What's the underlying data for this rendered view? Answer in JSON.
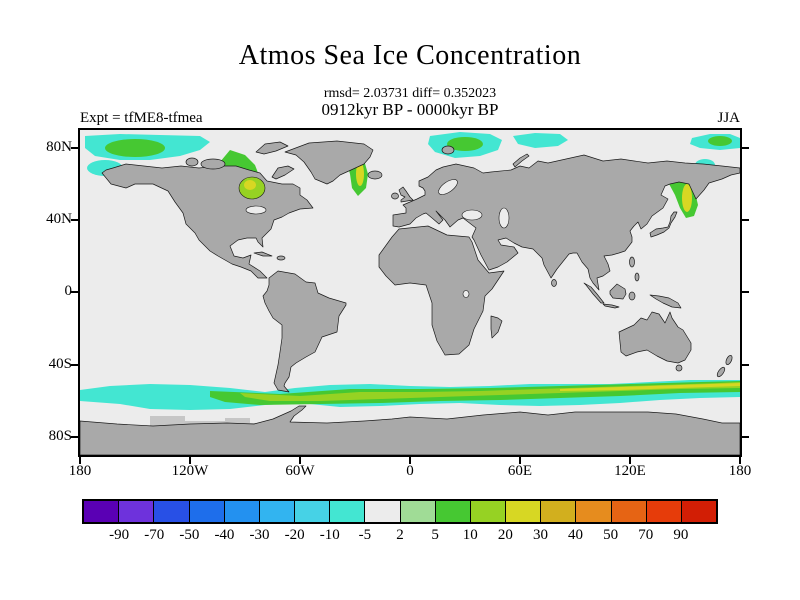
{
  "title": "Atmos Sea Ice Concentration",
  "stats_line": "rmsd= 2.03731 diff= 0.352023",
  "period_line": "0912kyr BP - 0000kyr BP",
  "experiment_label": "Expt = tfME8-tfmea",
  "season_label": "JJA",
  "axes": {
    "lat_ticks": [
      "80N",
      "40N",
      "0",
      "40S",
      "80S"
    ],
    "lon_ticks": [
      "180",
      "120W",
      "60W",
      "0",
      "60E",
      "120E",
      "180"
    ]
  },
  "colorbar": {
    "tick_labels": [
      "-90",
      "-70",
      "-50",
      "-40",
      "-30",
      "-20",
      "-10",
      "-5",
      "2",
      "5",
      "10",
      "20",
      "30",
      "40",
      "50",
      "70",
      "90"
    ],
    "segment_colors": [
      "#5a00b4",
      "#6e32dc",
      "#2850e6",
      "#1e6eeb",
      "#2391f0",
      "#32b4f0",
      "#46d2e6",
      "#43e6d2",
      "#ececec",
      "#a0dc96",
      "#46c832",
      "#96d223",
      "#d7d723",
      "#d2af1e",
      "#e68c1e",
      "#e66414",
      "#e63c0a",
      "#d21e05"
    ]
  },
  "map_colors": {
    "ocean": "#ececec",
    "land": "#a9a9a9",
    "coastline": "#1a1a1a",
    "frame": "#000000",
    "ice_negative_turquoise": "#43e6d2",
    "ice_positive_green": "#46c832",
    "ice_positive_yellow_green": "#96d223",
    "ice_positive_yellow": "#d7d723",
    "gray_patch": "#c6c6c6"
  },
  "chart_data": {
    "type": "heatmap",
    "title": "Atmos Sea Ice Concentration",
    "stats": {
      "rmsd": 2.03731,
      "diff": 0.352023
    },
    "period": "0912kyr BP - 0000kyr BP",
    "experiment": "tfME8-tfmea",
    "season": "JJA",
    "projection": "equirectangular world map",
    "lon_range": [
      -180,
      180
    ],
    "lat_range": [
      -90,
      90
    ],
    "x_tick_labels": [
      "180",
      "120W",
      "60W",
      "0",
      "60E",
      "120E",
      "180"
    ],
    "y_tick_labels": [
      "80N",
      "40N",
      "0",
      "40S",
      "80S"
    ],
    "colorbar_levels": [
      -90,
      -70,
      -50,
      -40,
      -30,
      -20,
      -10,
      -5,
      2,
      5,
      10,
      20,
      30,
      40,
      50,
      70,
      90
    ],
    "colorbar_colors": [
      "#5a00b4",
      "#6e32dc",
      "#2850e6",
      "#1e6eeb",
      "#2391f0",
      "#32b4f0",
      "#46d2e6",
      "#43e6d2",
      "#ececec",
      "#a0dc96",
      "#46c832",
      "#96d223",
      "#d7d723",
      "#d2af1e",
      "#e68c1e",
      "#e66414",
      "#e63c0a",
      "#d21e05"
    ],
    "features": [
      "circumpolar band of negative anomalies (turquoise, about -10 to -5) around 55-65S in the Southern Ocean",
      "positive anomalies (green to yellow, about 5 to 30) embedded along the Antarctic sea-ice edge, strongest east of 60E to 180",
      "small gray patches between the ice band and the Antarctic coast near 120W-60W",
      "Arctic marginal-sea anomalies: turquoise/green in Beaufort-Chukchi seas, green/yellow in Baffin Bay-Davis Strait and Hudson Bay, green/yellow along East Greenland, turquoise/green in Barents-Kara seas, green/yellow in Sea of Okhotsk-Kamchatka region",
      "most of the global ocean is in the near-zero class (-5 to 2, light gray)"
    ]
  }
}
